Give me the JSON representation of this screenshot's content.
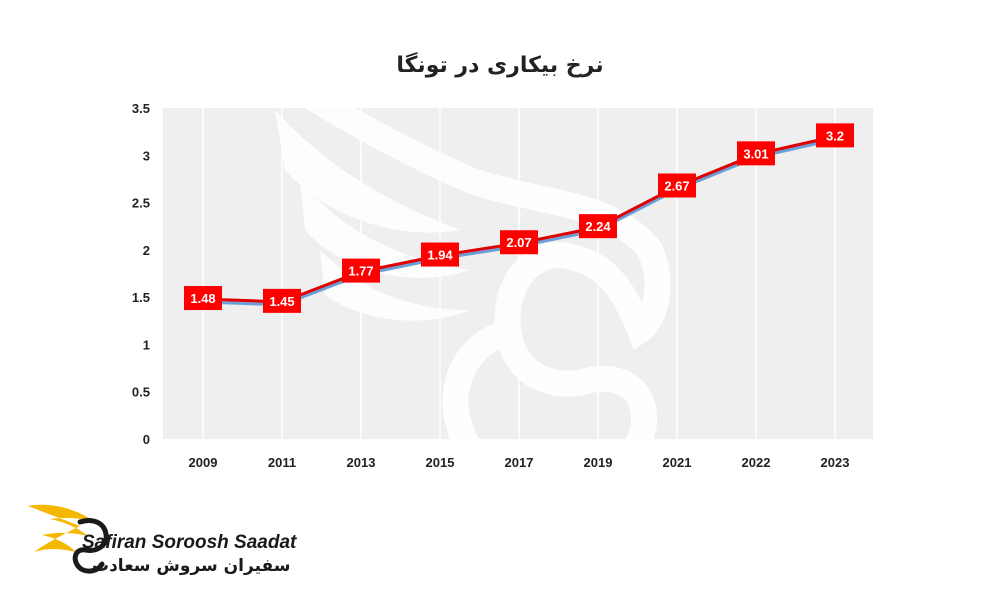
{
  "chart_data": {
    "type": "line",
    "title": "نرخ بیکاری در تونگا",
    "categories": [
      "2009",
      "2011",
      "2013",
      "2015",
      "2017",
      "2019",
      "2021",
      "2022",
      "2023"
    ],
    "values": [
      1.48,
      1.45,
      1.77,
      1.94,
      2.07,
      2.24,
      2.67,
      3.01,
      3.2
    ],
    "data_labels": [
      "1.48",
      "1.45",
      "1.77",
      "1.94",
      "2.07",
      "2.24",
      "2.67",
      "3.01",
      "3.2"
    ],
    "y_ticks": [
      "0",
      "0.5",
      "1",
      "1.5",
      "2",
      "2.5",
      "3",
      "3.5"
    ],
    "ylim": [
      0,
      3.5
    ],
    "grid": "vertical",
    "line_color": "#e00000",
    "shadow_color": "#6a9fd8",
    "label_bg_color": "#ff0000",
    "plot_bg_color": "#efefef"
  },
  "brand": {
    "name_en": "Safiran Soroosh Saadat",
    "name_fa": "سفیران سروش سعادت",
    "logo_color": "#f5b800"
  }
}
